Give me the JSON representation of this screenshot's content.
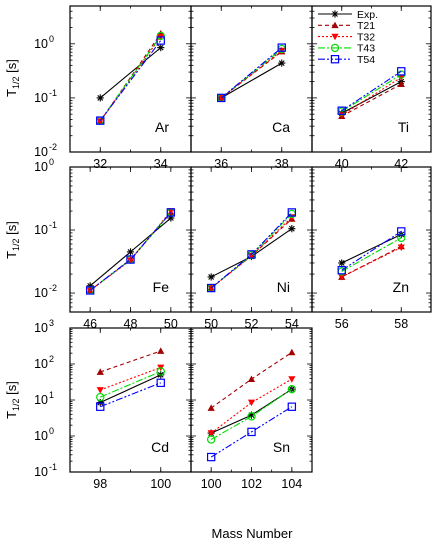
{
  "chart_data": {
    "type": "line",
    "xlabel": "Mass Number",
    "ylabel": "T",
    "ylabel_sub": "1/2",
    "ylabel_unit": "[s]",
    "y_scale": "log",
    "legend_placement": "top-right",
    "series": [
      {
        "key": "exp",
        "name": "Exp.",
        "color": "#000000",
        "dash": "",
        "marker": "asterisk"
      },
      {
        "key": "t21",
        "name": "T21",
        "color": "#a50000",
        "dash": "4,3",
        "marker": "triangle-up"
      },
      {
        "key": "t32",
        "name": "T32",
        "color": "#ff0000",
        "dash": "2,2",
        "marker": "triangle-down"
      },
      {
        "key": "t43",
        "name": "T43",
        "color": "#00dd00",
        "dash": "7,2,2,2",
        "marker": "circle"
      },
      {
        "key": "t54",
        "name": "T54",
        "color": "#0000ff",
        "dash": "7,2,2,2,2,2",
        "marker": "square"
      }
    ],
    "panels": [
      {
        "label": "Ar",
        "xticks": [
          "32",
          "34"
        ],
        "x": [
          32,
          34
        ],
        "xlim": [
          31,
          35
        ],
        "ylim": [
          0.01,
          5
        ],
        "yticks": [
          "10",
          "10",
          "10"
        ],
        "yticks_exp": [
          "-2",
          "-1",
          "0"
        ],
        "ytick_values": [
          0.01,
          0.1,
          1
        ],
        "values": {
          "exp": [
            0.1,
            0.85
          ],
          "t21": [
            0.037,
            1.55
          ],
          "t32": [
            0.037,
            1.35
          ],
          "t43": [
            0.038,
            1.4
          ],
          "t54": [
            0.038,
            1.15
          ]
        }
      },
      {
        "label": "Ca",
        "xticks": [
          "36",
          "38"
        ],
        "x": [
          36,
          38
        ],
        "xlim": [
          35,
          39
        ],
        "ylim": [
          0.01,
          5
        ],
        "values": {
          "exp": [
            0.1,
            0.44
          ],
          "t21": [
            0.1,
            0.72
          ],
          "t32": [
            0.1,
            0.75
          ],
          "t43": [
            0.1,
            0.8
          ],
          "t54": [
            0.1,
            0.85
          ]
        }
      },
      {
        "label": "Ti",
        "xticks": [
          "40",
          "42"
        ],
        "x": [
          40,
          42
        ],
        "xlim": [
          39,
          43
        ],
        "ylim": [
          0.01,
          5
        ],
        "values": {
          "exp": [
            0.052,
            0.2
          ],
          "t21": [
            0.046,
            0.18
          ],
          "t32": [
            0.048,
            0.24
          ],
          "t43": [
            0.056,
            0.27
          ],
          "t54": [
            0.058,
            0.31
          ]
        }
      },
      {
        "label": "Fe",
        "xticks": [
          "46",
          "48",
          "50"
        ],
        "x": [
          46,
          48,
          50
        ],
        "xlim": [
          45,
          51
        ],
        "ylim": [
          0.005,
          1
        ],
        "yticks": [
          "10",
          "10",
          "10"
        ],
        "yticks_exp": [
          "-2",
          "-1",
          "0"
        ],
        "ytick_values": [
          0.01,
          0.1,
          1
        ],
        "values": {
          "exp": [
            0.013,
            0.045,
            0.155
          ],
          "t21": [
            0.011,
            0.034,
            0.19
          ],
          "t32": [
            0.011,
            0.033,
            0.2
          ],
          "t43": [
            0.011,
            0.034,
            0.19
          ],
          "t54": [
            0.011,
            0.034,
            0.19
          ]
        }
      },
      {
        "label": "Ni",
        "xticks": [
          "50",
          "52",
          "54"
        ],
        "x": [
          50,
          52,
          54
        ],
        "xlim": [
          49,
          55
        ],
        "ylim": [
          0.005,
          1
        ],
        "values": {
          "exp": [
            0.018,
            0.038,
            0.105
          ],
          "t21": [
            0.012,
            0.039,
            0.15
          ],
          "t32": [
            0.012,
            0.039,
            0.16
          ],
          "t43": [
            0.012,
            0.04,
            0.18
          ],
          "t54": [
            0.012,
            0.041,
            0.19
          ]
        }
      },
      {
        "label": "Zn",
        "xticks": [
          "56",
          "58"
        ],
        "x": [
          56,
          58
        ],
        "xlim": [
          55,
          59
        ],
        "ylim": [
          0.005,
          1
        ],
        "values": {
          "exp": [
            0.03,
            0.085
          ],
          "t21": [
            0.018,
            0.055
          ],
          "t32": [
            0.018,
            0.053
          ],
          "t43": [
            0.022,
            0.075
          ],
          "t54": [
            0.023,
            0.095
          ]
        }
      },
      {
        "label": "Cd",
        "xticks": [
          "98",
          "100"
        ],
        "x": [
          98,
          100
        ],
        "xlim": [
          97,
          101
        ],
        "ylim": [
          0.1,
          1000
        ],
        "yticks": [
          "10",
          "10",
          "10",
          "10",
          "10"
        ],
        "yticks_exp": [
          "-1",
          "0",
          "1",
          "2",
          "3"
        ],
        "ytick_values": [
          0.1,
          1,
          10,
          100,
          1000
        ],
        "values": {
          "exp": [
            8.5,
            50
          ],
          "t21": [
            60,
            230
          ],
          "t32": [
            19,
            80
          ],
          "t43": [
            12,
            62
          ],
          "t54": [
            6.5,
            30
          ]
        }
      },
      {
        "label": "Sn",
        "xticks": [
          "100",
          "102",
          "104"
        ],
        "x": [
          100,
          102,
          104
        ],
        "xlim": [
          99,
          105
        ],
        "ylim": [
          0.1,
          1000
        ],
        "values": {
          "exp": [
            1.2,
            3.8,
            20
          ],
          "t21": [
            6,
            38,
            210
          ],
          "t32": [
            1.2,
            8.5,
            38
          ],
          "t43": [
            0.8,
            3.5,
            20
          ],
          "t54": [
            0.26,
            1.3,
            6.5
          ]
        }
      }
    ]
  }
}
